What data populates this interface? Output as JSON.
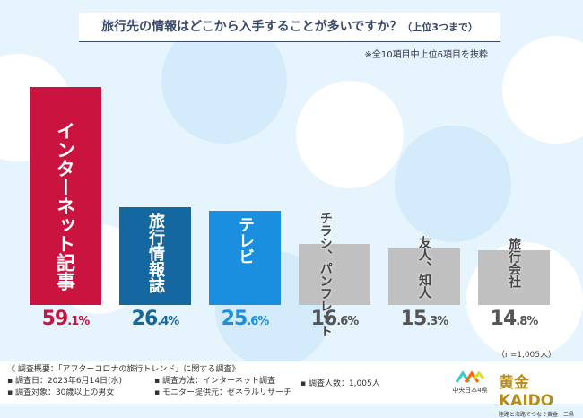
{
  "title": "旅行先の情報はどこから入手することが多いですか？",
  "title_suffix": "（上位3つまで）",
  "note": "※全10項目中上位6項目を抜粋",
  "n_label": "（n=1,005人）",
  "chart_data": {
    "type": "bar",
    "title": "旅行先の情報はどこから入手することが多いですか？（上位3つまで）",
    "categories": [
      "インターネット記事",
      "旅行情報誌",
      "テレビ",
      "チラシ、パンフレット",
      "友人、知人",
      "旅行会社"
    ],
    "values": [
      59.1,
      26.4,
      25.6,
      16.6,
      15.3,
      14.8
    ],
    "unit": "%",
    "colors": [
      "#c8143f",
      "#15689f",
      "#1a8fe0",
      "#c0c0c0",
      "#c0c0c0",
      "#c0c0c0"
    ],
    "label_colors": [
      "#c8143f",
      "#15689f",
      "#1a8fe0",
      "#555555",
      "#555555",
      "#555555"
    ],
    "ylim": [
      0,
      60
    ]
  },
  "footer": {
    "heading": "《 調査概要：「アフターコロナの旅行トレンド」に関する調査》",
    "date": "▪ 調査日：2023年6月14日(水)",
    "target": "▪ 調査対象：30歳以上の男女",
    "method": "▪ 調査方法：インターネット調査",
    "provider": "▪ モニター提供元：ゼネラルリサーチ",
    "count": "▪ 調査人数：1,005人"
  },
  "logos": {
    "logo1": "中央日本4県",
    "logo2": "黄金KAIDO",
    "logo2_sub": "陸路と海路でつなぐ黄金一三県"
  }
}
